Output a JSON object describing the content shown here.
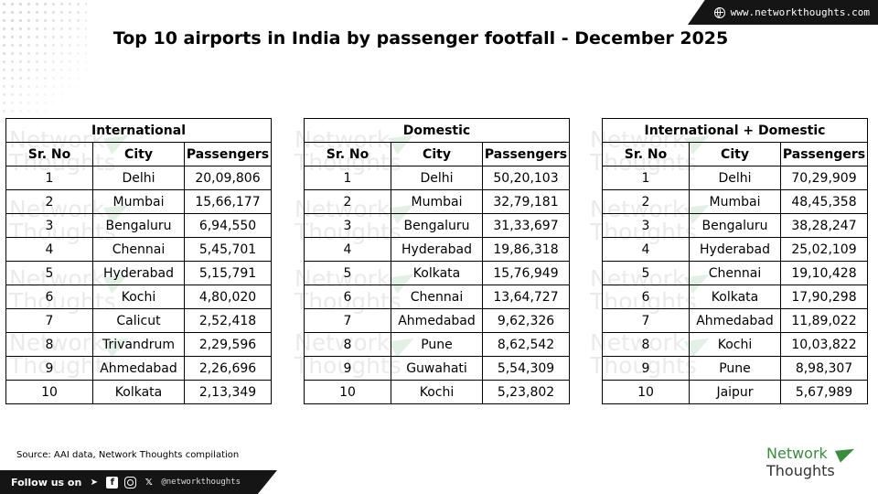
{
  "banner": {
    "url": "www.networkthoughts.com",
    "icon": "globe-icon"
  },
  "title": "Top 10 airports in India by passenger footfall - December 2025",
  "watermark": {
    "line1": "Network",
    "line2": "Thoughts"
  },
  "tables": [
    {
      "group": "International",
      "headers": [
        "Sr. No",
        "City",
        "Passengers"
      ],
      "rows": [
        [
          "1",
          "Delhi",
          "20,09,806"
        ],
        [
          "2",
          "Mumbai",
          "15,66,177"
        ],
        [
          "3",
          "Bengaluru",
          "6,94,550"
        ],
        [
          "4",
          "Chennai",
          "5,45,701"
        ],
        [
          "5",
          "Hyderabad",
          "5,15,791"
        ],
        [
          "6",
          "Kochi",
          "4,80,020"
        ],
        [
          "7",
          "Calicut",
          "2,52,418"
        ],
        [
          "8",
          "Trivandrum",
          "2,29,596"
        ],
        [
          "9",
          "Ahmedabad",
          "2,26,696"
        ],
        [
          "10",
          "Kolkata",
          "2,13,349"
        ]
      ]
    },
    {
      "group": "Domestic",
      "headers": [
        "Sr. No",
        "City",
        "Passengers"
      ],
      "rows": [
        [
          "1",
          "Delhi",
          "50,20,103"
        ],
        [
          "2",
          "Mumbai",
          "32,79,181"
        ],
        [
          "3",
          "Bengaluru",
          "31,33,697"
        ],
        [
          "4",
          "Hyderabad",
          "19,86,318"
        ],
        [
          "5",
          "Kolkata",
          "15,76,949"
        ],
        [
          "6",
          "Chennai",
          "13,64,727"
        ],
        [
          "7",
          "Ahmedabad",
          "9,62,326"
        ],
        [
          "8",
          "Pune",
          "8,62,542"
        ],
        [
          "9",
          "Guwahati",
          "5,54,309"
        ],
        [
          "10",
          "Kochi",
          "5,23,802"
        ]
      ]
    },
    {
      "group": "International + Domestic",
      "headers": [
        "Sr. No",
        "City",
        "Passengers"
      ],
      "rows": [
        [
          "1",
          "Delhi",
          "70,29,909"
        ],
        [
          "2",
          "Mumbai",
          "48,45,358"
        ],
        [
          "3",
          "Bengaluru",
          "38,28,247"
        ],
        [
          "4",
          "Hyderabad",
          "25,02,109"
        ],
        [
          "5",
          "Chennai",
          "19,10,428"
        ],
        [
          "6",
          "Kolkata",
          "17,90,298"
        ],
        [
          "7",
          "Ahmedabad",
          "11,89,022"
        ],
        [
          "8",
          "Kochi",
          "10,03,822"
        ],
        [
          "9",
          "Pune",
          "8,98,307"
        ],
        [
          "10",
          "Jaipur",
          "5,67,989"
        ]
      ]
    }
  ],
  "source": "Source: AAI data, Network Thoughts compilation",
  "footer": {
    "follow_label": "Follow us on",
    "icons": [
      "telegram-icon",
      "facebook-icon",
      "instagram-icon",
      "x-icon"
    ],
    "handle": "@networkthoughts"
  },
  "logo": {
    "line1": "Network",
    "line2": "Thoughts"
  }
}
